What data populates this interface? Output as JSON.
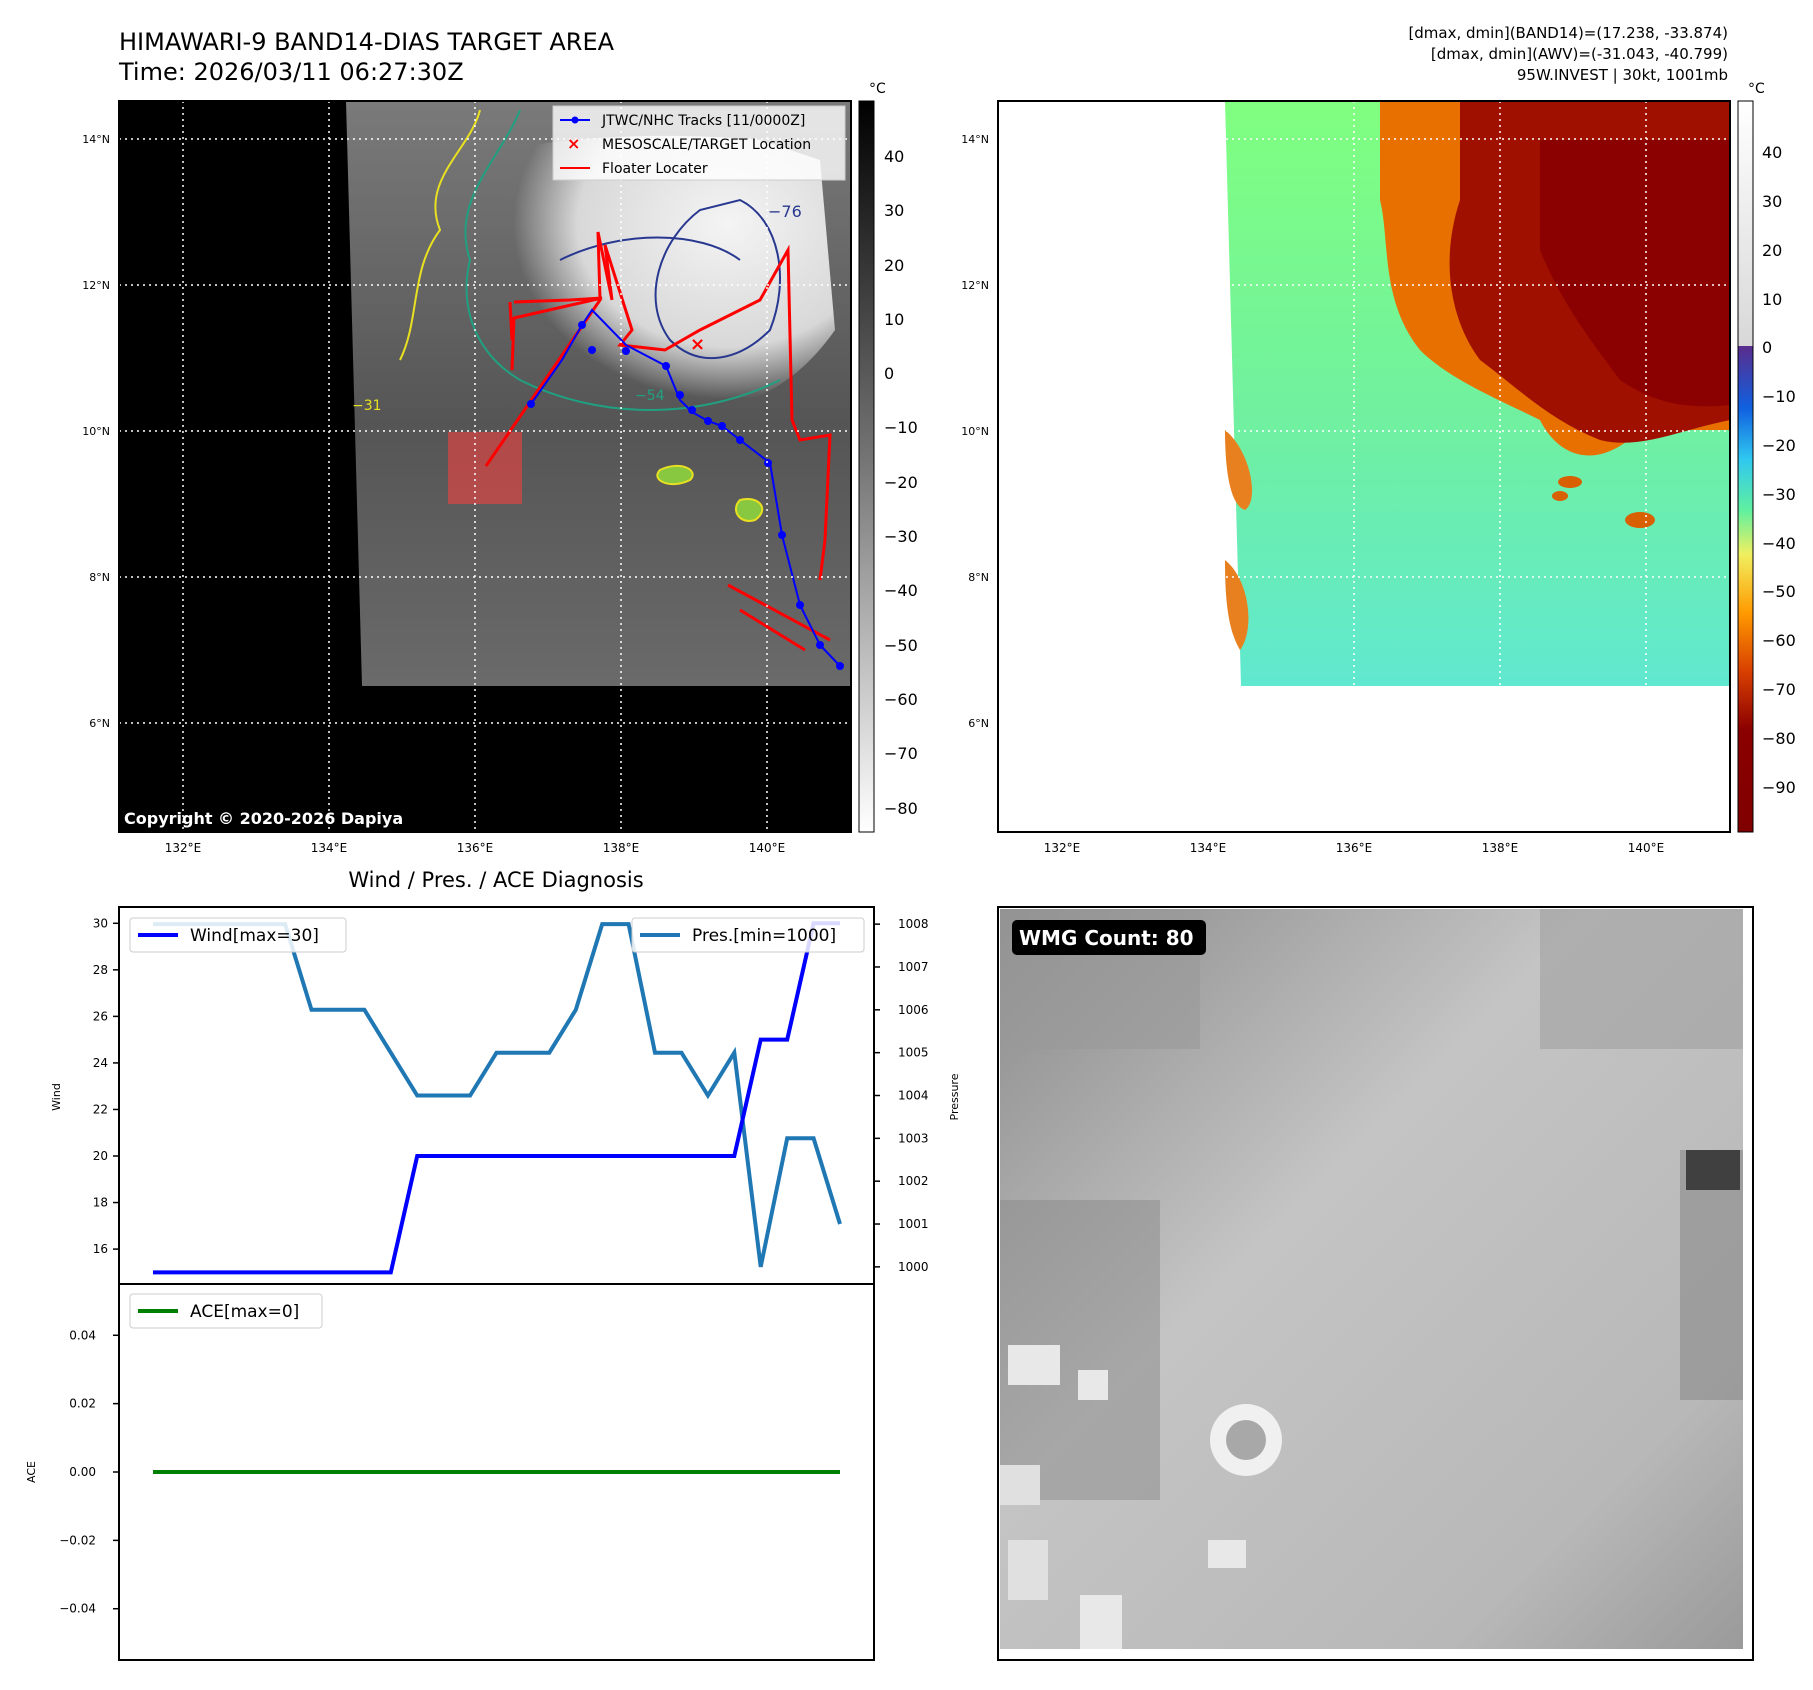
{
  "header": {
    "title_line1": "HIMAWARI-9 BAND14-DIAS TARGET AREA",
    "title_line2": "Time: 2026/03/11 06:27:30Z",
    "info_line1": "[dmax, dmin](BAND14)=(17.238, -33.874)",
    "info_line2": "[dmax, dmin](AWV)=(-31.043, -40.799)",
    "info_line3": "95W.INVEST | 30kt, 1001mb"
  },
  "map": {
    "lon_ticks": [
      "132°E",
      "134°E",
      "136°E",
      "138°E",
      "140°E"
    ],
    "lat_ticks": [
      "14°N",
      "12°N",
      "10°N",
      "8°N",
      "6°N"
    ],
    "copyright": "Copyright © 2020-2026 Dapiya",
    "contour_label": "−76",
    "contour_label_2": "−54",
    "contour_label_3": "−31",
    "legend": {
      "track": "JTWC/NHC Tracks [11/0000Z]",
      "target": "MESOSCALE/TARGET Location",
      "floater": "Floater Locater"
    },
    "colorbar_unit": "°C",
    "gray_colorbar_ticks": [
      "40",
      "30",
      "20",
      "10",
      "0",
      "−10",
      "−20",
      "−30",
      "−40",
      "−50",
      "−60",
      "−70",
      "−80"
    ],
    "color_colorbar_ticks": [
      "40",
      "30",
      "20",
      "10",
      "0",
      "−10",
      "−20",
      "−30",
      "−40",
      "−50",
      "−60",
      "−70",
      "−80",
      "−90"
    ],
    "colors": {
      "track": "#0000ff",
      "floater": "#ff0000",
      "target": "#ff0000"
    }
  },
  "chart_data": [
    {
      "type": "line",
      "title": "Wind / Pres. / ACE Diagnosis",
      "ylabel": "Wind",
      "ylabel_right": "Pressure",
      "x": [
        0,
        1,
        2,
        3,
        4,
        5,
        6,
        7,
        8,
        9,
        10,
        11,
        12,
        13,
        14,
        15,
        16,
        17,
        18,
        19,
        20,
        21,
        22,
        23,
        24,
        25,
        26
      ],
      "series": [
        {
          "name": "Wind[max=30]",
          "axis": "left",
          "color": "#0000ff",
          "values": [
            15,
            15,
            15,
            15,
            15,
            15,
            15,
            15,
            15,
            15,
            20,
            20,
            20,
            20,
            20,
            20,
            20,
            20,
            20,
            20,
            20,
            20,
            20,
            25,
            25,
            30,
            30
          ]
        },
        {
          "name": "Pres.[min=1000]",
          "axis": "right",
          "color": "#1f77b4",
          "values": [
            1008,
            1008,
            1008,
            1008,
            1008,
            1008,
            1006,
            1006,
            1006,
            1005,
            1004,
            1004,
            1004,
            1005,
            1005,
            1005,
            1006,
            1008,
            1008,
            1005,
            1005,
            1004,
            1005,
            1000,
            1003,
            1003,
            1001
          ]
        }
      ],
      "ylim": [
        14.5,
        30.7
      ],
      "ylim_right": [
        999.6,
        1008.4
      ],
      "yticks": [
        "30",
        "28",
        "26",
        "24",
        "22",
        "20",
        "18",
        "16"
      ],
      "yticks_right": [
        "1008",
        "1007",
        "1006",
        "1005",
        "1004",
        "1003",
        "1002",
        "1001",
        "1000"
      ]
    },
    {
      "type": "line",
      "ylabel": "ACE",
      "x": [
        0,
        26
      ],
      "series": [
        {
          "name": "ACE[max=0]",
          "color": "#008000",
          "values": [
            0,
            0
          ]
        }
      ],
      "ylim": [
        -0.055,
        0.055
      ],
      "yticks": [
        "0.04",
        "0.02",
        "0.00",
        "−0.02",
        "−0.04"
      ]
    }
  ],
  "wmg": {
    "label": "WMG Count: 80"
  }
}
